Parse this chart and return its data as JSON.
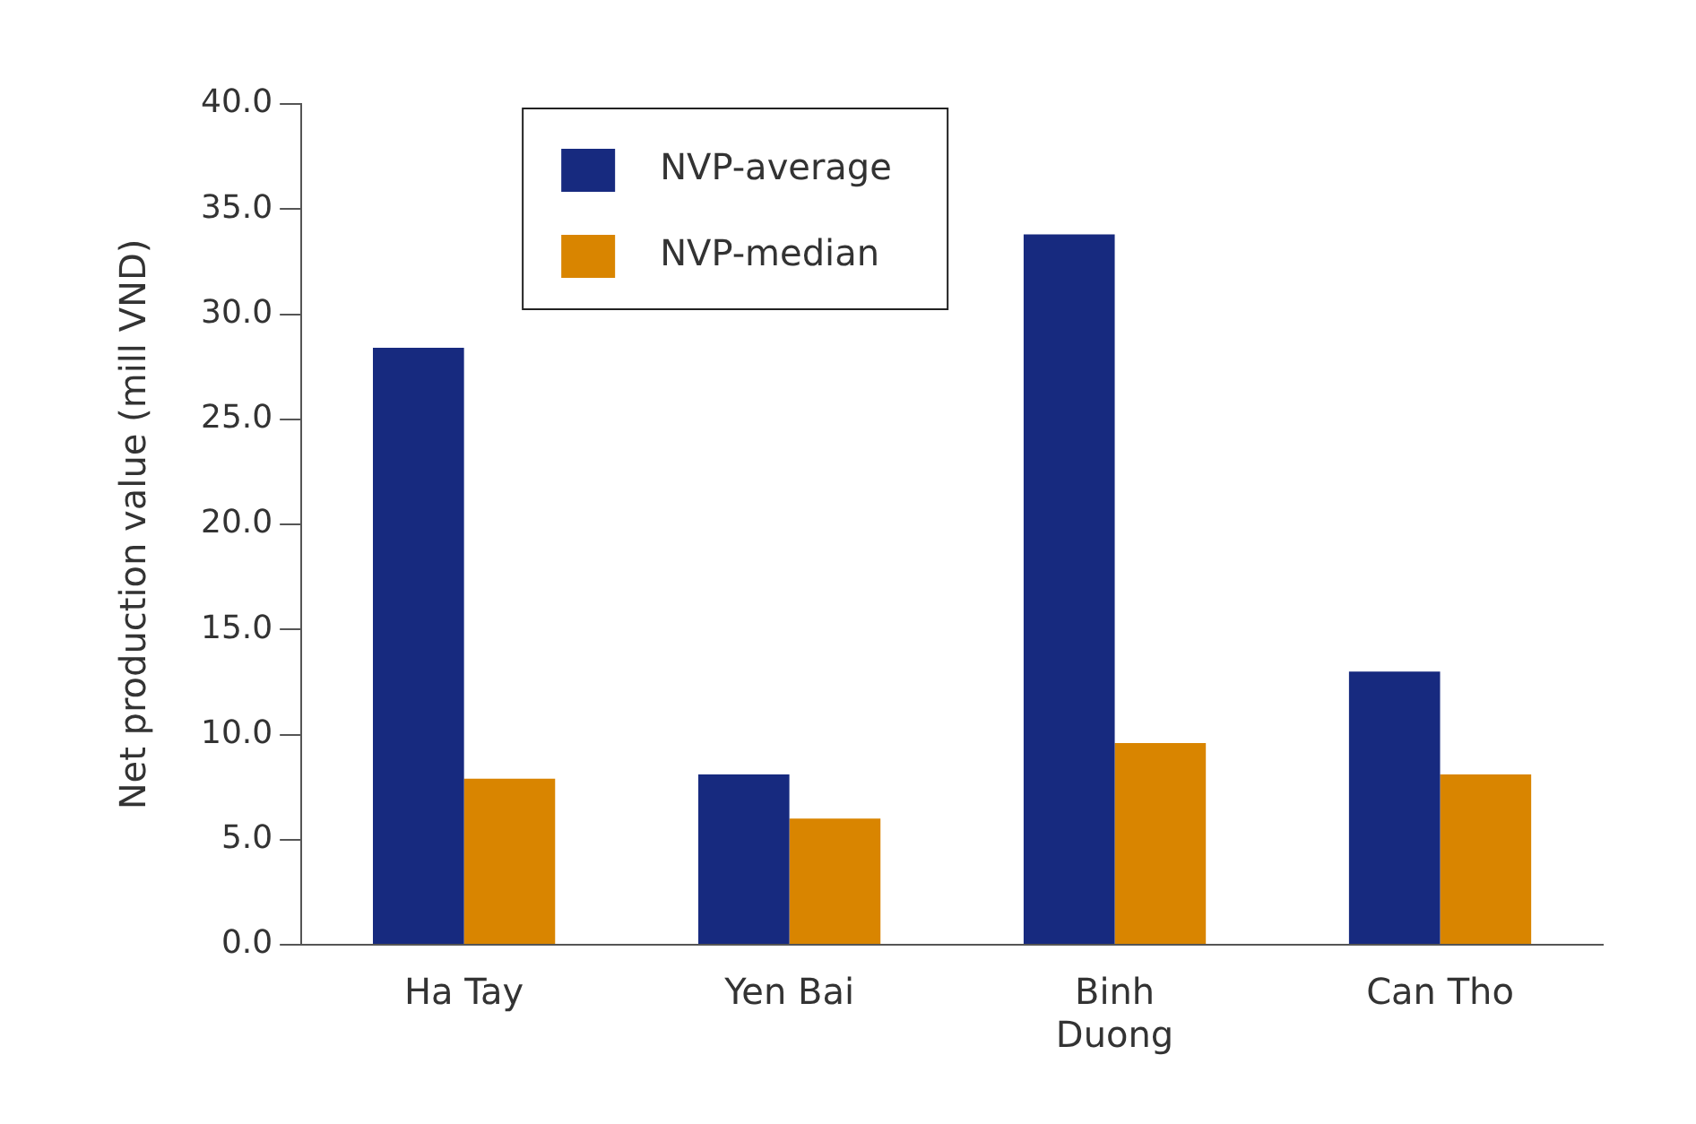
{
  "chart_data": {
    "type": "bar",
    "ylabel": "Net production value (mill VND)",
    "categories": [
      "Ha Tay",
      "Yen Bai",
      "Binh Duong",
      "Can Tho"
    ],
    "series": [
      {
        "name": "NVP-average",
        "color": "#172a7f",
        "values": [
          28.4,
          8.1,
          33.8,
          13.0
        ]
      },
      {
        "name": "NVP-median",
        "color": "#d98500",
        "values": [
          7.9,
          6.0,
          9.6,
          8.1
        ]
      }
    ],
    "ylim": [
      0,
      40
    ],
    "yticks": [
      {
        "value": 0,
        "label": "0.0"
      },
      {
        "value": 5,
        "label": "5.0"
      },
      {
        "value": 10,
        "label": "10.0"
      },
      {
        "value": 15,
        "label": "15.0"
      },
      {
        "value": 20,
        "label": "20.0"
      },
      {
        "value": 25,
        "label": "25.0"
      },
      {
        "value": 30,
        "label": "30.0"
      },
      {
        "value": 35,
        "label": "35.0"
      },
      {
        "value": 40,
        "label": "40.0"
      }
    ],
    "grid": false,
    "legend": "top left"
  }
}
